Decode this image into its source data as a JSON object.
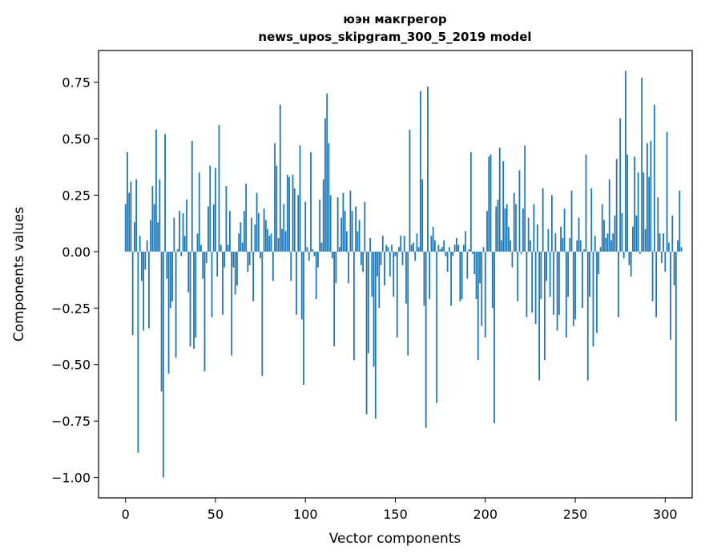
{
  "chart_data": {
    "type": "bar",
    "title_line1": "юэн макгрегор",
    "title_line2": "news_upos_skipgram_300_5_2019 model",
    "xlabel": "Vector components",
    "ylabel": "Components values",
    "xlim": [
      -15,
      315
    ],
    "ylim": [
      -1.09,
      0.89
    ],
    "xticks": [
      0,
      50,
      100,
      150,
      200,
      250,
      300
    ],
    "yticks": [
      -1.0,
      -0.75,
      -0.5,
      -0.25,
      0.0,
      0.25,
      0.5,
      0.75
    ],
    "ytick_labels": [
      "−1.00",
      "−0.75",
      "−0.50",
      "−0.25",
      "0.00",
      "0.25",
      "0.50",
      "0.75"
    ],
    "bar_color": "#1f77b4",
    "values": [
      0.21,
      0.44,
      0.26,
      0.31,
      -0.37,
      0.13,
      0.32,
      -0.89,
      0.07,
      -0.13,
      -0.35,
      -0.08,
      0.05,
      -0.34,
      0.14,
      0.29,
      0.21,
      0.54,
      0.13,
      0.32,
      -0.62,
      -1.0,
      0.52,
      -0.12,
      -0.54,
      -0.25,
      -0.22,
      0.15,
      -0.47,
      0.01,
      0.18,
      -0.02,
      0.17,
      0.07,
      0.23,
      -0.18,
      -0.42,
      0.49,
      -0.43,
      -0.38,
      0.08,
      0.35,
      0.03,
      -0.12,
      -0.53,
      -0.05,
      0.2,
      0.38,
      -0.29,
      0.21,
      0.37,
      -0.11,
      0.56,
      0.03,
      -0.28,
      -0.07,
      0.29,
      0.03,
      0.18,
      -0.46,
      -0.07,
      -0.19,
      -0.15,
      0.08,
      0.13,
      0.04,
      0.18,
      0.3,
      -0.09,
      -0.06,
      0.15,
      -0.22,
      0.12,
      0.26,
      0.17,
      -0.03,
      -0.55,
      0.19,
      0.14,
      0.1,
      0.07,
      0.08,
      -0.13,
      0.48,
      0.38,
      0.06,
      0.65,
      0.1,
      0.21,
      0.09,
      0.34,
      0.33,
      -0.13,
      0.34,
      0.28,
      -0.28,
      0.25,
      0.47,
      -0.3,
      -0.59,
      0.22,
      0.02,
      -0.04,
      0.44,
      0.01,
      -0.02,
      -0.21,
      -0.07,
      0.23,
      0.04,
      0.32,
      0.59,
      0.7,
      0.48,
      0.25,
      -0.03,
      -0.42,
      -0.14,
      0.24,
      0.02,
      0.15,
      0.26,
      0.18,
      0.09,
      -0.14,
      0.27,
      0.18,
      -0.48,
      0.2,
      0.09,
      0.14,
      -0.06,
      -0.09,
      0.22,
      -0.72,
      -0.45,
      0.06,
      -0.2,
      -0.51,
      -0.74,
      -0.11,
      -0.25,
      -0.06,
      0.07,
      -0.15,
      0.03,
      0.02,
      -0.11,
      0.03,
      -0.2,
      -0.02,
      -0.38,
      0.02,
      0.07,
      -0.06,
      0.07,
      -0.23,
      -0.46,
      0.54,
      0.03,
      0.04,
      -0.04,
      0.08,
      0.02,
      0.71,
      0.32,
      -0.24,
      -0.78,
      0.73,
      -0.21,
      0.07,
      0.11,
      0.05,
      -0.67,
      0.03,
      0.01,
      0.02,
      0.05,
      -0.02,
      -0.09,
      0.02,
      -0.24,
      -0.02,
      0.03,
      0.06,
      0.03,
      -0.22,
      -0.21,
      0.03,
      0.09,
      -0.12,
      0.01,
      0.44,
      -0.01,
      -0.1,
      -0.21,
      -0.48,
      -0.14,
      -0.33,
      0.02,
      -0.38,
      0.18,
      0.42,
      0.43,
      -0.25,
      -0.76,
      0.2,
      0.23,
      0.46,
      0.05,
      0.4,
      0.19,
      0.21,
      0.11,
      0.05,
      -0.07,
      0.26,
      0.21,
      -0.22,
      0.36,
      -0.01,
      0.19,
      0.47,
      -0.29,
      0.15,
      0.05,
      -0.27,
      0.21,
      -0.32,
      0.12,
      -0.57,
      -0.21,
      0.28,
      -0.48,
      -0.13,
      0.1,
      -0.2,
      0.25,
      -0.28,
      0.08,
      -0.35,
      -0.28,
      0.11,
      0.06,
      0.19,
      -0.38,
      -0.2,
      0.06,
      0.27,
      -0.33,
      -0.3,
      0.05,
      0.15,
      0.05,
      -0.25,
      0.01,
      0.43,
      -0.57,
      -0.2,
      0.28,
      -0.42,
      0.07,
      -0.36,
      -0.1,
      0.02,
      0.21,
      0.14,
      0.06,
      0.08,
      0.32,
      0.05,
      0.08,
      0.16,
      0.41,
      -0.29,
      0.59,
      0.17,
      -0.03,
      0.8,
      0.43,
      -0.06,
      -0.11,
      0.11,
      0.42,
      0.16,
      0.35,
      -0.01,
      0.77,
      0.35,
      0.1,
      0.48,
      0.33,
      0.49,
      -0.22,
      0.65,
      -0.29,
      0.24,
      0.08,
      -0.05,
      0.08,
      -0.09,
      0.53,
      0.04,
      -0.39,
      0.16,
      -0.15,
      -0.75,
      0.05,
      0.27,
      0.02
    ]
  }
}
